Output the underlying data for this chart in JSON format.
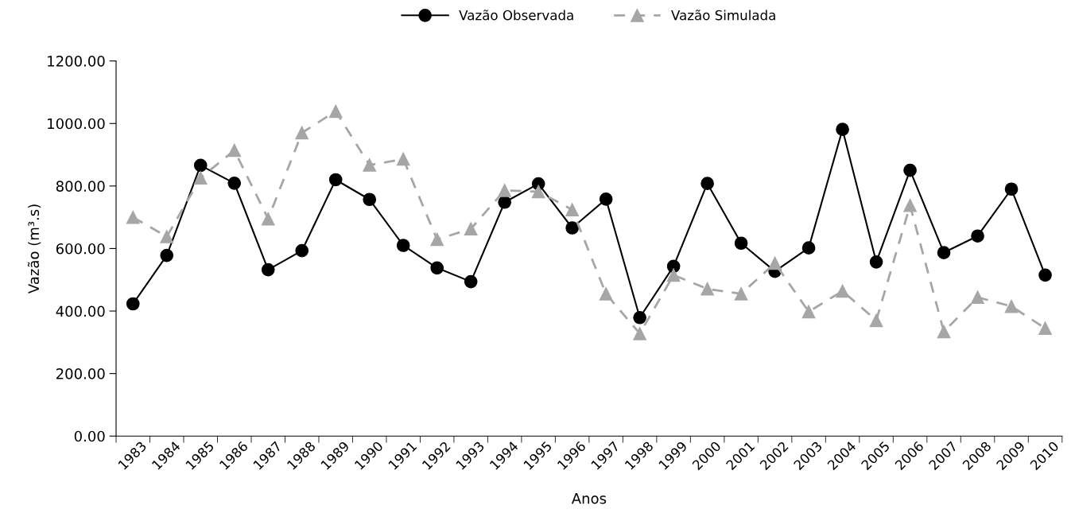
{
  "chart_data": {
    "type": "line",
    "xlabel": "Anos",
    "ylabel": "Vazão (m³.s)",
    "categories": [
      "1983",
      "1984",
      "1985",
      "1986",
      "1987",
      "1988",
      "1989",
      "1990",
      "1991",
      "1992",
      "1993",
      "1994",
      "1995",
      "1996",
      "1997",
      "1998",
      "1999",
      "2000",
      "2001",
      "2002",
      "2003",
      "2004",
      "2005",
      "2006",
      "2007",
      "2008",
      "2009",
      "2010"
    ],
    "series": [
      {
        "name": "Vazão Observada",
        "color": "#000000",
        "marker": "circle",
        "line_style": "solid",
        "values": [
          423,
          578,
          866,
          809,
          532,
          593,
          820,
          757,
          610,
          538,
          494,
          748,
          807,
          666,
          758,
          379,
          543,
          808,
          617,
          527,
          602,
          981,
          557,
          850,
          587,
          640,
          790,
          515
        ]
      },
      {
        "name": "Vazão Simulada",
        "color": "#a6a6a6",
        "marker": "triangle",
        "line_style": "dashed",
        "values": [
          700,
          638,
          826,
          914,
          695,
          970,
          1039,
          867,
          886,
          629,
          663,
          786,
          782,
          724,
          455,
          328,
          515,
          471,
          455,
          553,
          398,
          464,
          370,
          738,
          334,
          444,
          415,
          345
        ]
      }
    ],
    "ylim": [
      0,
      1200
    ],
    "yticks": [
      {
        "value": 0,
        "label": "0.00"
      },
      {
        "value": 200,
        "label": "200.00"
      },
      {
        "value": 400,
        "label": "400.00"
      },
      {
        "value": 600,
        "label": "600.00"
      },
      {
        "value": 800,
        "label": "800.00"
      },
      {
        "value": 1000,
        "label": "1000.00"
      },
      {
        "value": 1200,
        "label": "1200.00"
      }
    ],
    "grid": false,
    "legend": "top"
  }
}
